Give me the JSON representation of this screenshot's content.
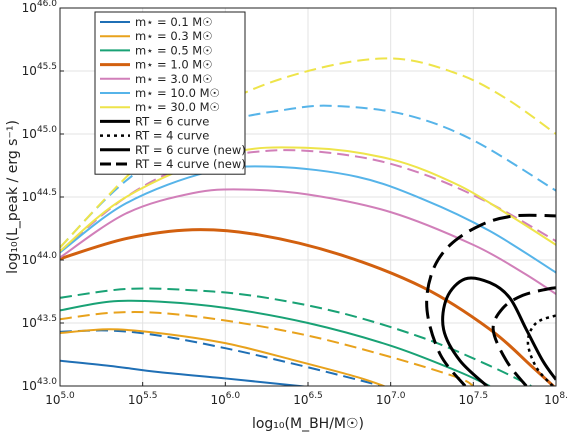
{
  "chart_data": {
    "type": "line",
    "xlabel": "log₁₀(M_BH/M☉)",
    "ylabel": "log₁₀(L_peak / erg s⁻¹)",
    "xlim": [
      5.0,
      8.0
    ],
    "ylim": [
      43.0,
      46.0
    ],
    "x_ticks": [
      {
        "value": 5.0,
        "base": "10",
        "exp": "5.0"
      },
      {
        "value": 5.5,
        "base": "10",
        "exp": "5.5"
      },
      {
        "value": 6.0,
        "base": "10",
        "exp": "6.0"
      },
      {
        "value": 6.5,
        "base": "10",
        "exp": "6.5"
      },
      {
        "value": 7.0,
        "base": "10",
        "exp": "7.0"
      },
      {
        "value": 7.5,
        "base": "10",
        "exp": "7.5"
      },
      {
        "value": 8.0,
        "base": "10",
        "exp": "8."
      }
    ],
    "y_ticks": [
      {
        "value": 43.0,
        "base": "10",
        "exp": "43.0"
      },
      {
        "value": 43.5,
        "base": "10",
        "exp": "43.5"
      },
      {
        "value": 44.0,
        "base": "10",
        "exp": "44.0"
      },
      {
        "value": 44.5,
        "base": "10",
        "exp": "44.5"
      },
      {
        "value": 45.0,
        "base": "10",
        "exp": "45.0"
      },
      {
        "value": 45.5,
        "base": "10",
        "exp": "45.5"
      },
      {
        "value": 46.0,
        "base": "10",
        "exp": "46.0"
      }
    ],
    "grid": true,
    "legend_position": "top-left",
    "legend": [
      {
        "label": "m⋆ = 0.1 M☉",
        "color": "#1f6fb5",
        "dash": "solid",
        "width": 2
      },
      {
        "label": "m⋆ = 0.3 M☉",
        "color": "#e8a21c",
        "dash": "solid",
        "width": 2
      },
      {
        "label": "m⋆ = 0.5 M☉",
        "color": "#19a275",
        "dash": "solid",
        "width": 2
      },
      {
        "label": "m⋆ = 1.0 M☉",
        "color": "#d2600f",
        "dash": "solid",
        "width": 3
      },
      {
        "label": "m⋆ = 3.0 M☉",
        "color": "#d17fb9",
        "dash": "solid",
        "width": 2
      },
      {
        "label": "m⋆ = 10.0 M☉",
        "color": "#56b4e9",
        "dash": "solid",
        "width": 2
      },
      {
        "label": "m⋆ = 30.0 M☉",
        "color": "#eee44a",
        "dash": "solid",
        "width": 2
      },
      {
        "label": "RT = 6 curve",
        "color": "#000000",
        "dash": "solid",
        "width": 3
      },
      {
        "label": "RT = 4 curve",
        "color": "#000000",
        "dash": "dot",
        "width": 2.5
      },
      {
        "label": "RT = 6 curve (new)",
        "color": "#000000",
        "dash": "solid",
        "width": 3
      },
      {
        "label": "RT = 4 curve (new)",
        "color": "#000000",
        "dash": "longdash",
        "width": 3
      }
    ],
    "series": [
      {
        "color": "#1f6fb5",
        "dash": "solid",
        "width": 2,
        "points": [
          [
            5.0,
            43.2
          ],
          [
            5.3,
            43.16
          ],
          [
            5.6,
            43.11
          ],
          [
            6.0,
            43.06
          ],
          [
            6.3,
            43.02
          ],
          [
            6.6,
            42.98
          ]
        ]
      },
      {
        "color": "#1f6fb5",
        "dash": "dash",
        "width": 2,
        "points": [
          [
            5.0,
            43.43
          ],
          [
            5.3,
            43.44
          ],
          [
            5.6,
            43.4
          ],
          [
            6.0,
            43.3
          ],
          [
            6.4,
            43.18
          ],
          [
            6.8,
            43.05
          ],
          [
            7.0,
            42.98
          ]
        ]
      },
      {
        "color": "#e8a21c",
        "dash": "solid",
        "width": 2,
        "points": [
          [
            5.0,
            43.42
          ],
          [
            5.3,
            43.45
          ],
          [
            5.6,
            43.42
          ],
          [
            6.0,
            43.34
          ],
          [
            6.4,
            43.21
          ],
          [
            6.8,
            43.07
          ],
          [
            7.0,
            42.98
          ]
        ]
      },
      {
        "color": "#e8a21c",
        "dash": "dash",
        "width": 2,
        "points": [
          [
            5.0,
            43.53
          ],
          [
            5.3,
            43.58
          ],
          [
            5.6,
            43.58
          ],
          [
            6.0,
            43.52
          ],
          [
            6.5,
            43.4
          ],
          [
            7.0,
            43.23
          ],
          [
            7.4,
            43.07
          ],
          [
            7.5,
            43.0
          ]
        ]
      },
      {
        "color": "#19a275",
        "dash": "solid",
        "width": 2,
        "points": [
          [
            5.0,
            43.6
          ],
          [
            5.3,
            43.67
          ],
          [
            5.6,
            43.67
          ],
          [
            6.0,
            43.62
          ],
          [
            6.5,
            43.5
          ],
          [
            7.0,
            43.32
          ],
          [
            7.4,
            43.12
          ],
          [
            7.6,
            43.0
          ]
        ]
      },
      {
        "color": "#19a275",
        "dash": "dash",
        "width": 2,
        "points": [
          [
            5.0,
            43.7
          ],
          [
            5.4,
            43.77
          ],
          [
            5.8,
            43.76
          ],
          [
            6.2,
            43.71
          ],
          [
            6.7,
            43.58
          ],
          [
            7.2,
            43.38
          ],
          [
            7.6,
            43.16
          ],
          [
            7.85,
            43.0
          ]
        ]
      },
      {
        "color": "#d2600f",
        "dash": "solid",
        "width": 3,
        "points": [
          [
            5.0,
            44.01
          ],
          [
            5.4,
            44.17
          ],
          [
            5.8,
            44.24
          ],
          [
            6.2,
            44.2
          ],
          [
            6.7,
            44.04
          ],
          [
            7.2,
            43.78
          ],
          [
            7.6,
            43.45
          ],
          [
            7.85,
            43.16
          ],
          [
            8.0,
            42.98
          ]
        ]
      },
      {
        "color": "#d17fb9",
        "dash": "solid",
        "width": 2,
        "points": [
          [
            5.0,
            44.02
          ],
          [
            5.4,
            44.37
          ],
          [
            5.8,
            44.53
          ],
          [
            6.1,
            44.56
          ],
          [
            6.5,
            44.52
          ],
          [
            7.0,
            44.38
          ],
          [
            7.5,
            44.12
          ],
          [
            7.8,
            43.9
          ],
          [
            8.0,
            43.73
          ]
        ]
      },
      {
        "color": "#d17fb9",
        "dash": "dash",
        "width": 2,
        "points": [
          [
            5.0,
            44.07
          ],
          [
            5.4,
            44.5
          ],
          [
            5.8,
            44.76
          ],
          [
            6.3,
            44.87
          ],
          [
            6.8,
            44.82
          ],
          [
            7.2,
            44.68
          ],
          [
            7.6,
            44.45
          ],
          [
            8.0,
            44.15
          ]
        ]
      },
      {
        "color": "#56b4e9",
        "dash": "solid",
        "width": 2,
        "points": [
          [
            5.0,
            44.06
          ],
          [
            5.4,
            44.45
          ],
          [
            5.9,
            44.7
          ],
          [
            6.3,
            44.74
          ],
          [
            6.8,
            44.66
          ],
          [
            7.2,
            44.48
          ],
          [
            7.6,
            44.23
          ],
          [
            8.0,
            43.9
          ]
        ]
      },
      {
        "color": "#56b4e9",
        "dash": "dash",
        "width": 2,
        "points": [
          [
            5.0,
            44.1
          ],
          [
            5.4,
            44.63
          ],
          [
            5.9,
            45.05
          ],
          [
            6.4,
            45.2
          ],
          [
            6.7,
            45.22
          ],
          [
            7.1,
            45.15
          ],
          [
            7.5,
            44.95
          ],
          [
            8.0,
            44.55
          ]
        ]
      },
      {
        "color": "#eee44a",
        "dash": "solid",
        "width": 2,
        "points": [
          [
            5.0,
            44.07
          ],
          [
            5.4,
            44.5
          ],
          [
            6.0,
            44.84
          ],
          [
            6.5,
            44.89
          ],
          [
            7.0,
            44.8
          ],
          [
            7.4,
            44.6
          ],
          [
            7.7,
            44.37
          ],
          [
            8.0,
            44.12
          ]
        ]
      },
      {
        "color": "#eee44a",
        "dash": "dash",
        "width": 2,
        "points": [
          [
            5.0,
            44.1
          ],
          [
            5.5,
            44.78
          ],
          [
            6.0,
            45.25
          ],
          [
            6.5,
            45.5
          ],
          [
            7.0,
            45.6
          ],
          [
            7.4,
            45.48
          ],
          [
            7.7,
            45.28
          ],
          [
            8.0,
            45.0
          ]
        ]
      },
      {
        "color": "#000000",
        "dash": "solid",
        "width": 3,
        "points": [
          [
            7.6,
            42.98
          ],
          [
            7.42,
            43.2
          ],
          [
            7.32,
            43.45
          ],
          [
            7.34,
            43.7
          ],
          [
            7.45,
            43.85
          ],
          [
            7.6,
            43.82
          ],
          [
            7.72,
            43.7
          ],
          [
            7.82,
            43.45
          ],
          [
            7.92,
            43.2
          ],
          [
            8.0,
            43.05
          ]
        ]
      },
      {
        "color": "#000000",
        "dash": "longdash",
        "width": 3,
        "points": [
          [
            7.45,
            43.0
          ],
          [
            7.3,
            43.25
          ],
          [
            7.22,
            43.6
          ],
          [
            7.25,
            43.9
          ],
          [
            7.36,
            44.12
          ],
          [
            7.55,
            44.28
          ],
          [
            7.75,
            44.35
          ],
          [
            8.0,
            44.35
          ]
        ]
      },
      {
        "color": "#000000",
        "dash": "longdash",
        "width": 3,
        "points": [
          [
            7.82,
            43.0
          ],
          [
            7.7,
            43.2
          ],
          [
            7.62,
            43.45
          ],
          [
            7.68,
            43.62
          ],
          [
            7.8,
            43.72
          ],
          [
            7.95,
            43.77
          ],
          [
            8.0,
            43.78
          ]
        ]
      },
      {
        "color": "#000000",
        "dash": "dot",
        "width": 2.5,
        "points": [
          [
            7.98,
            43.0
          ],
          [
            7.88,
            43.15
          ],
          [
            7.83,
            43.35
          ],
          [
            7.88,
            43.5
          ],
          [
            8.0,
            43.56
          ]
        ]
      }
    ]
  }
}
